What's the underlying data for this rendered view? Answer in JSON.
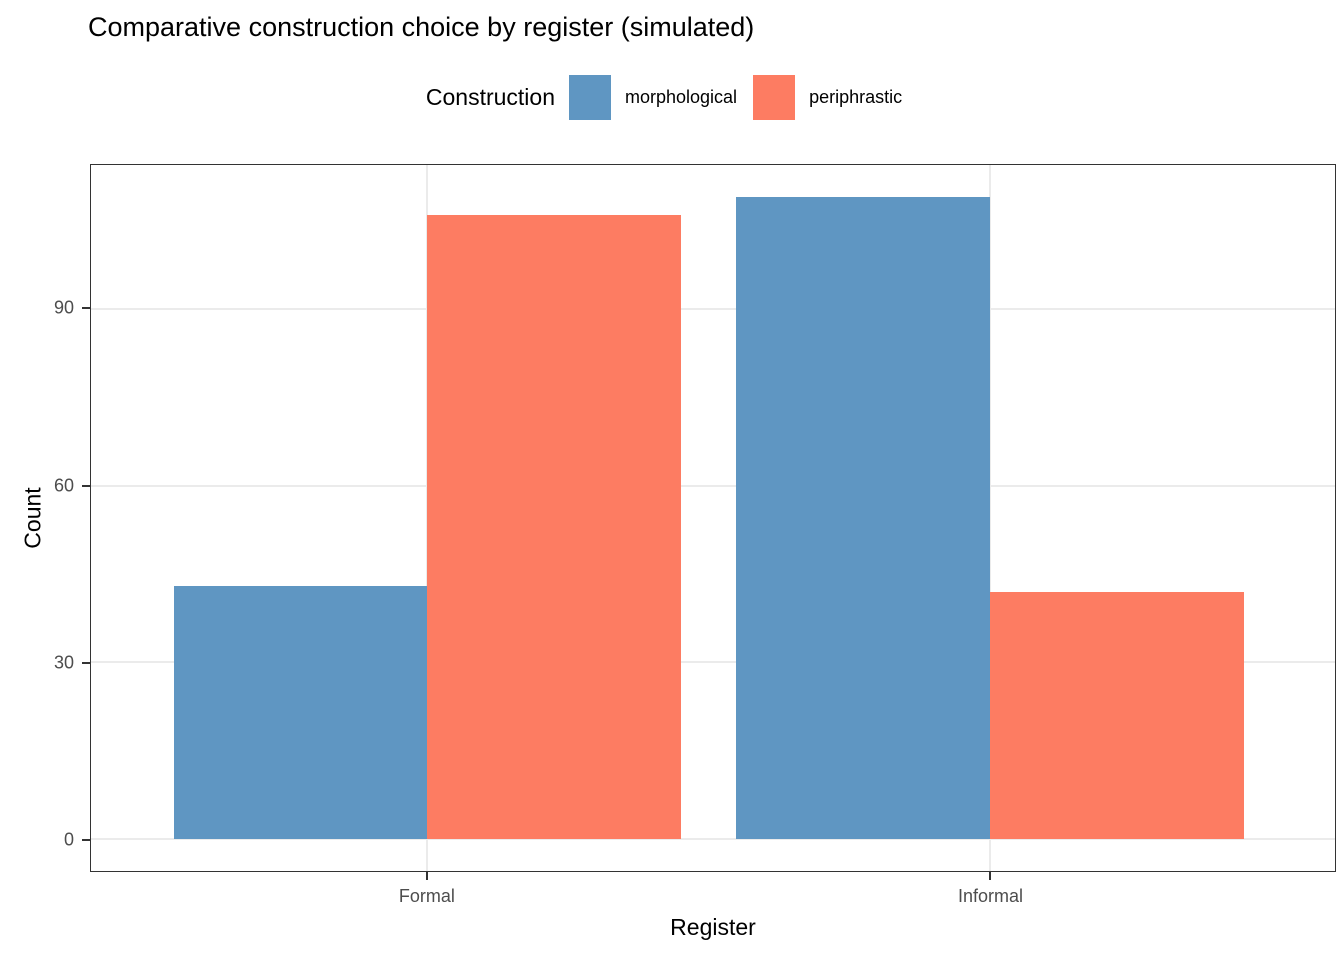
{
  "title": "Comparative construction choice by register (simulated)",
  "legend": {
    "title": "Construction",
    "items": [
      {
        "label": "morphological",
        "color": "#5f96c2"
      },
      {
        "label": "periphrastic",
        "color": "#fd7c62"
      }
    ]
  },
  "axes": {
    "x_title": "Register",
    "y_title": "Count",
    "x_tick_labels": [
      "Formal",
      "Informal"
    ],
    "y_tick_labels": [
      "0",
      "30",
      "60",
      "90"
    ]
  },
  "chart_data": {
    "type": "bar",
    "title": "Comparative construction choice by register (simulated)",
    "xlabel": "Register",
    "ylabel": "Count",
    "categories": [
      "Formal",
      "Informal"
    ],
    "series": [
      {
        "name": "morphological",
        "color": "#5f96c2",
        "values": [
          43,
          109
        ]
      },
      {
        "name": "periphrastic",
        "color": "#fd7c62",
        "values": [
          106,
          42
        ]
      }
    ],
    "yticks": [
      0,
      30,
      60,
      90
    ],
    "ylim": [
      -5.45,
      114.45
    ],
    "grid": "major horizontal gridlines at yticks plus vertical gridlines at category centers, light gray, no minor gridlines",
    "legend_position": "top-center horizontal",
    "style": {
      "panel_border_color": "#333333",
      "gridline_color": "#ebebeb",
      "tick_color": "#333333",
      "tick_label_color": "#4d4d4d",
      "background": "#ffffff"
    }
  }
}
